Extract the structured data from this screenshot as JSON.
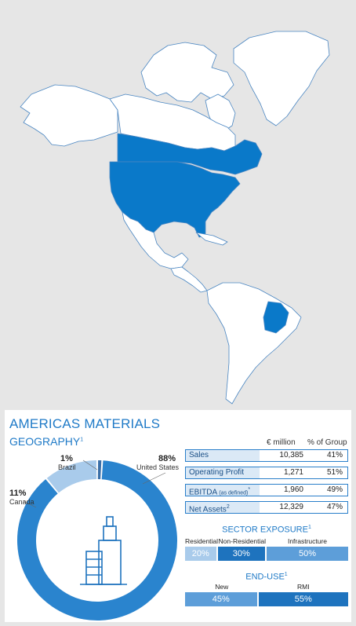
{
  "colors": {
    "background": "#e6e6e6",
    "land": "#ffffff",
    "highlight": "#0a79c9",
    "border": "#4a86c2",
    "title": "#1f7ac7",
    "bar_dark": "#1e73be",
    "bar_mid": "#5d9ed9",
    "bar_light": "#a9cbeb"
  },
  "map": {
    "highlighted_regions": [
      "United States",
      "Canada (southern provinces)",
      "Brazil (south-east states)"
    ]
  },
  "panel": {
    "title": "AMERICAS MATERIALS",
    "subtitle": "GEOGRAPHY",
    "subtitle_note": "1"
  },
  "chart_data": {
    "type": "pie",
    "title": "GEOGRAPHY",
    "categories": [
      "United States",
      "Canada",
      "Brazil"
    ],
    "values": [
      88,
      11,
      1
    ],
    "value_labels": [
      "88%",
      "11%",
      "1%"
    ],
    "center_icon": "building-icon",
    "colors": [
      "#2a84ce",
      "#a9cbeb",
      "#3a6fa8"
    ]
  },
  "financials": {
    "col_million": "€ million",
    "col_group": "% of Group",
    "rows": [
      {
        "label": "Sales",
        "note": "",
        "suffix": "",
        "value": "10,385",
        "pct": "41%"
      },
      {
        "label": "Operating Profit",
        "note": "",
        "suffix": "",
        "value": "1,271",
        "pct": "51%"
      },
      {
        "label": "EBITDA",
        "note": "(as defined)",
        "suffix": "*",
        "value": "1,960",
        "pct": "49%"
      },
      {
        "label": "Net Assets",
        "note": "",
        "suffix": "2",
        "value": "12,329",
        "pct": "47%"
      }
    ]
  },
  "sector": {
    "title": "SECTOR EXPOSURE",
    "note": "1",
    "segments": [
      {
        "label": "Residential",
        "value": "20%",
        "share": 20
      },
      {
        "label": "Non-Residential",
        "value": "30%",
        "share": 30
      },
      {
        "label": "Infrastructure",
        "value": "50%",
        "share": 50
      }
    ]
  },
  "enduse": {
    "title": "END-USE",
    "note": "1",
    "segments": [
      {
        "label": "New",
        "value": "45%",
        "share": 45
      },
      {
        "label": "RMI",
        "value": "55%",
        "share": 55
      }
    ]
  }
}
